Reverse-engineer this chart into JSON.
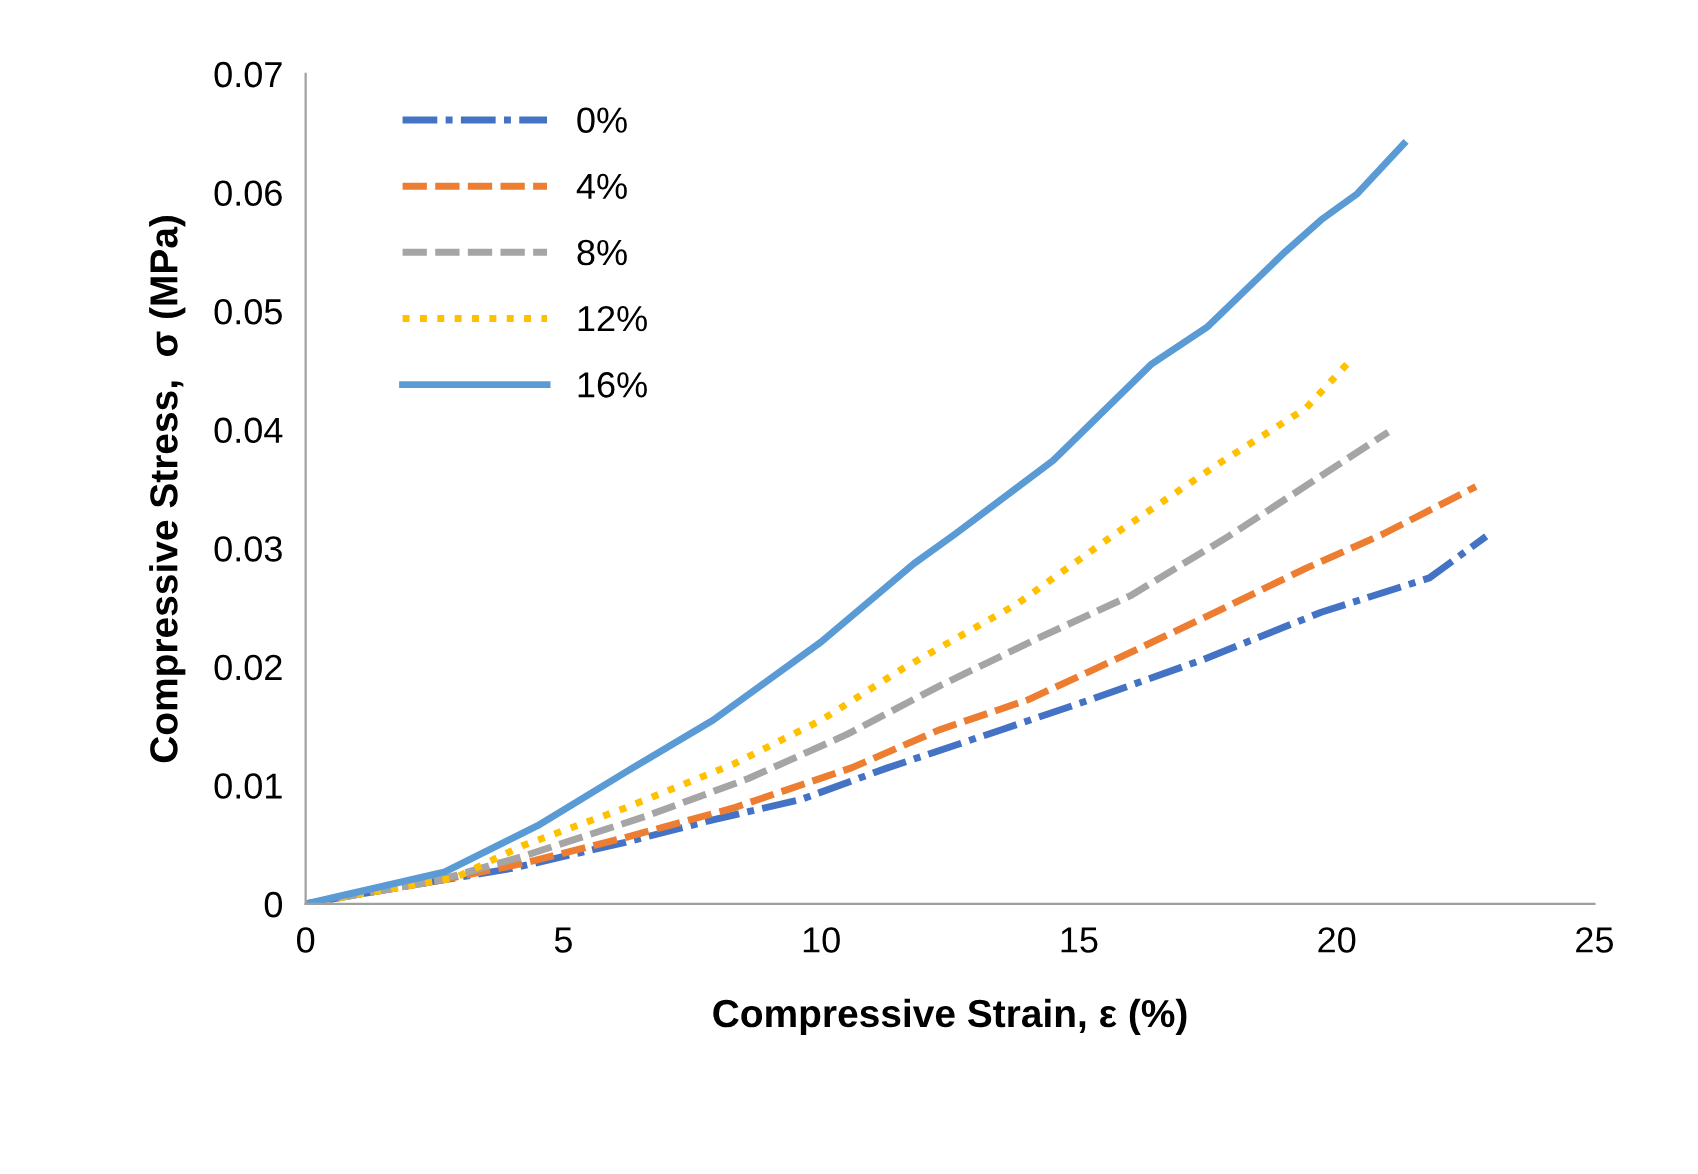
{
  "chart_data": {
    "type": "line",
    "xlabel": "Compressive Strain, ε (%)",
    "ylabel": "Compressive Stress,  σ (MPa)",
    "xlim": [
      0,
      25
    ],
    "xticks": [
      0,
      5,
      10,
      15,
      20,
      25
    ],
    "ylim": [
      0,
      0.07
    ],
    "yticks": [
      0,
      0.01,
      0.02,
      0.03,
      0.04,
      0.05,
      0.06,
      0.07
    ],
    "grid": false,
    "legend": "top left",
    "marker": "none",
    "series": [
      {
        "name": "0%",
        "color": "#4472c4",
        "line_style": "dashdot",
        "x": [
          0,
          1,
          2.5,
          4.0,
          6.2,
          7.9,
          9.6,
          11.3,
          13.5,
          15.2,
          17.4,
          19.7,
          21.8,
          22.9
        ],
        "values": [
          0,
          0.0008,
          0.0019,
          0.003,
          0.0052,
          0.0071,
          0.0088,
          0.0115,
          0.0147,
          0.0172,
          0.0206,
          0.0246,
          0.0275,
          0.031
        ]
      },
      {
        "name": "4%",
        "color": "#ed7d31",
        "line_style": "dashed",
        "x": [
          0,
          1,
          2.5,
          4.2,
          6.2,
          8.3,
          10.6,
          12.3,
          14.0,
          15.7,
          17.5,
          19.4,
          20.9,
          22.7
        ],
        "values": [
          0,
          0.0008,
          0.0019,
          0.0034,
          0.0056,
          0.0081,
          0.0115,
          0.0147,
          0.0172,
          0.0206,
          0.0243,
          0.0283,
          0.0312,
          0.0352
        ]
      },
      {
        "name": "8%",
        "color": "#a5a5a5",
        "line_style": "dashed",
        "x": [
          0,
          1,
          2.5,
          4.2,
          6.6,
          8.6,
          10.5,
          12.3,
          14.2,
          16.0,
          17.9,
          21.0
        ],
        "values": [
          0,
          0.0008,
          0.0019,
          0.004,
          0.0074,
          0.0106,
          0.0143,
          0.0184,
          0.0224,
          0.026,
          0.031,
          0.0398
        ]
      },
      {
        "name": "12%",
        "color": "#ffc000",
        "line_style": "dotted",
        "x": [
          0,
          1,
          2.9,
          4.2,
          6.2,
          8.3,
          10.0,
          11.6,
          13.8,
          15.7,
          17.7,
          19.4,
          20.3
        ],
        "values": [
          0,
          0.0008,
          0.0022,
          0.0049,
          0.0081,
          0.0118,
          0.0155,
          0.0199,
          0.0253,
          0.0312,
          0.0371,
          0.0418,
          0.046
        ]
      },
      {
        "name": "16%",
        "color": "#5b9bd5",
        "line_style": "solid",
        "x": [
          0,
          0.8,
          1.5,
          2.7,
          4.5,
          6.2,
          7.9,
          10.0,
          11.8,
          12.6,
          14.5,
          16.4,
          17.5,
          19.0,
          19.7,
          20.4,
          21.3
        ],
        "values": [
          0,
          0.0008,
          0.0015,
          0.0027,
          0.0066,
          0.0111,
          0.0155,
          0.0221,
          0.0287,
          0.0312,
          0.0374,
          0.0455,
          0.0487,
          0.055,
          0.0577,
          0.0599,
          0.0641
        ]
      }
    ]
  }
}
